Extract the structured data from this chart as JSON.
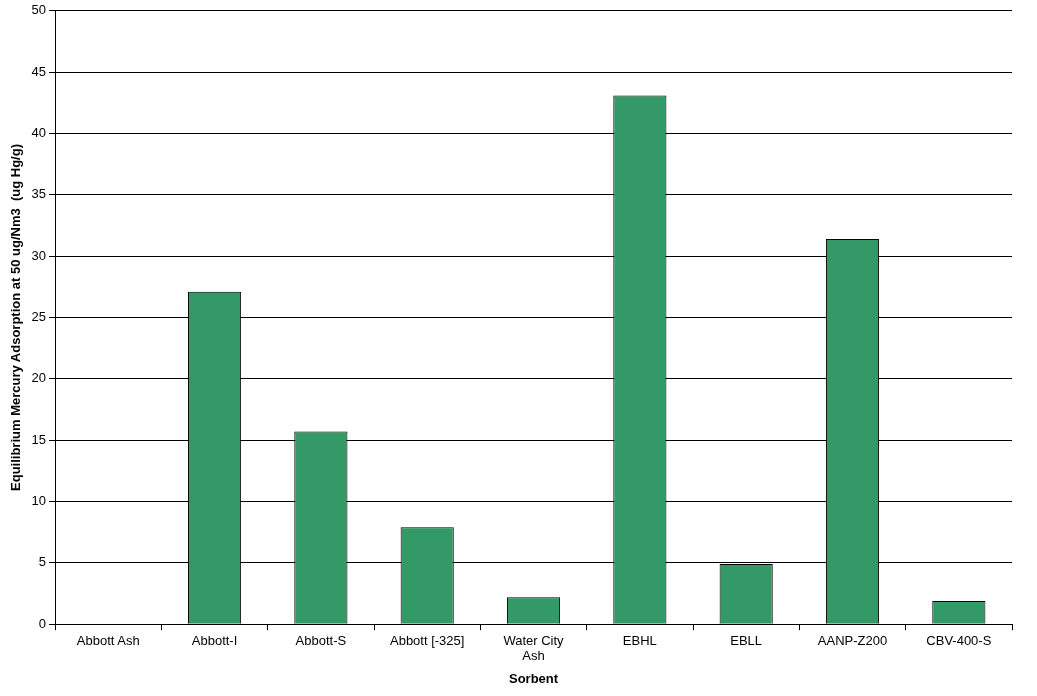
{
  "chart_data": {
    "type": "bar",
    "xlabel": "Sorbent",
    "ylabel": "Equilibrium Mercury Adsorption at 50 ug/Nm3  (ug Hg/g)",
    "categories": [
      "Abbott Ash",
      "Abbott-I",
      "Abbott-S",
      "Abbott [-325]",
      "Water City Ash",
      "EBHL",
      "EBLL",
      "AANP-Z200",
      "CBV-400-S"
    ],
    "values": [
      0,
      27.1,
      15.7,
      7.9,
      2.2,
      43.1,
      4.9,
      31.4,
      1.9
    ],
    "color": "#339966",
    "ylim": [
      0,
      50
    ],
    "yticks": [
      0,
      5,
      10,
      15,
      20,
      25,
      30,
      35,
      40,
      45,
      50
    ],
    "grid": "y",
    "legend": false
  }
}
